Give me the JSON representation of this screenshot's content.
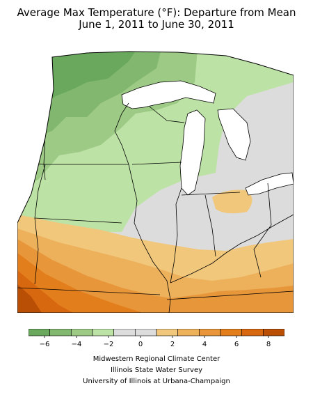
{
  "title": {
    "line1": "Average Max Temperature (°F): Departure from Mean",
    "line2": "June 1, 2011 to June 30, 2011"
  },
  "legend": {
    "colors": [
      "#6aa85d",
      "#82b76f",
      "#9dcb86",
      "#bde2a5",
      "#dcdcdc",
      "#dcdcdc",
      "#f1c77c",
      "#edb05b",
      "#e8963a",
      "#e37e1c",
      "#d8680f",
      "#b94f05"
    ],
    "ticks": [
      {
        "value": -6,
        "label": "−6"
      },
      {
        "value": -4,
        "label": "−4"
      },
      {
        "value": -2,
        "label": "−2"
      },
      {
        "value": 0,
        "label": "0"
      },
      {
        "value": 2,
        "label": "2"
      },
      {
        "value": 4,
        "label": "4"
      },
      {
        "value": 6,
        "label": "6"
      },
      {
        "value": 8,
        "label": "8"
      }
    ],
    "min": -7,
    "max": 9
  },
  "credits": {
    "line1": "Midwestern Regional Climate Center",
    "line2": "Illinois State Water Survey",
    "line3": "University of Illinois at Urbana-Champaign"
  }
}
